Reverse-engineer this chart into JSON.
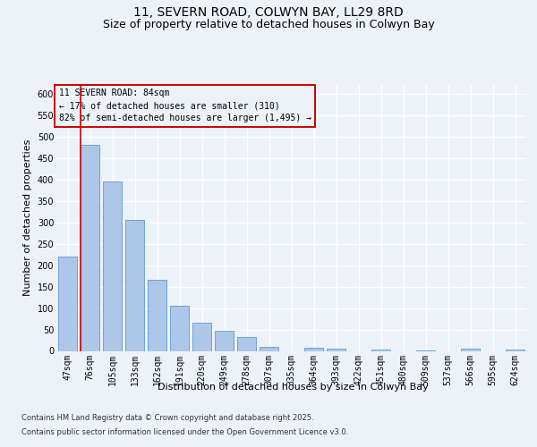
{
  "title_line1": "11, SEVERN ROAD, COLWYN BAY, LL29 8RD",
  "title_line2": "Size of property relative to detached houses in Colwyn Bay",
  "xlabel": "Distribution of detached houses by size in Colwyn Bay",
  "ylabel": "Number of detached properties",
  "categories": [
    "47sqm",
    "76sqm",
    "105sqm",
    "133sqm",
    "162sqm",
    "191sqm",
    "220sqm",
    "249sqm",
    "278sqm",
    "307sqm",
    "335sqm",
    "364sqm",
    "393sqm",
    "422sqm",
    "451sqm",
    "480sqm",
    "509sqm",
    "537sqm",
    "566sqm",
    "595sqm",
    "624sqm"
  ],
  "values": [
    220,
    480,
    395,
    305,
    165,
    105,
    65,
    47,
    32,
    10,
    0,
    8,
    5,
    0,
    3,
    0,
    2,
    0,
    5,
    0,
    3
  ],
  "bar_color": "#aec6e8",
  "bar_edge_color": "#5b9bd5",
  "annotation_line1": "11 SEVERN ROAD: 84sqm",
  "annotation_line2": "← 17% of detached houses are smaller (310)",
  "annotation_line3": "82% of semi-detached houses are larger (1,495) →",
  "vline_color": "#cc0000",
  "annotation_box_edgecolor": "#cc0000",
  "ylim_max": 620,
  "ytick_step": 50,
  "footer_line1": "Contains HM Land Registry data © Crown copyright and database right 2025.",
  "footer_line2": "Contains public sector information licensed under the Open Government Licence v3.0.",
  "bg_color": "#edf2f9",
  "grid_color": "#ffffff",
  "title1_fontsize": 10,
  "title2_fontsize": 9,
  "tick_fontsize": 7,
  "ylabel_fontsize": 8,
  "xlabel_fontsize": 8,
  "footer_fontsize": 6,
  "annot_fontsize": 7,
  "vline_bar_index": 1
}
